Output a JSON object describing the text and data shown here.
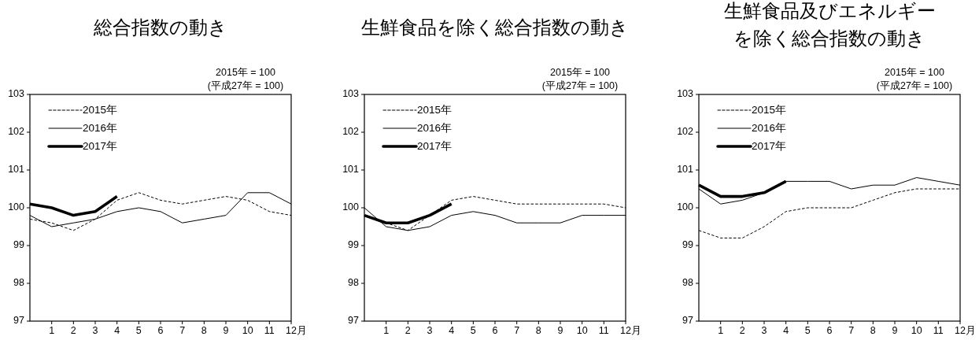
{
  "chart_data": [
    {
      "type": "line",
      "title": "総合指数の動き",
      "annotations": [
        "2015年 = 100",
        "(平成27年 = 100)"
      ],
      "x": [
        0,
        1,
        2,
        3,
        4,
        5,
        6,
        7,
        8,
        9,
        10,
        11,
        12
      ],
      "xlim": [
        0,
        12
      ],
      "xticks": [
        1,
        2,
        3,
        4,
        5,
        6,
        7,
        8,
        9,
        10,
        11,
        12
      ],
      "xlabel": "月",
      "ylim": [
        97,
        103
      ],
      "yticks": [
        97,
        98,
        99,
        100,
        101,
        102,
        103
      ],
      "legend": "top left",
      "series": [
        {
          "name": "2015年",
          "color": "#000000",
          "line_style": "dashed",
          "values": [
            99.7,
            99.6,
            99.4,
            99.7,
            100.2,
            100.4,
            100.2,
            100.1,
            100.2,
            100.3,
            100.2,
            99.9,
            99.8
          ]
        },
        {
          "name": "2016年",
          "color": "#000000",
          "line_style": "solid",
          "values": [
            99.8,
            99.5,
            99.6,
            99.7,
            99.9,
            100.0,
            99.9,
            99.6,
            99.7,
            99.8,
            100.4,
            100.4,
            100.1
          ]
        },
        {
          "name": "2017年",
          "color": "#000000",
          "line_style": "solid",
          "values": [
            100.1,
            100.0,
            99.8,
            99.9,
            100.3,
            null,
            null,
            null,
            null,
            null,
            null,
            null,
            null
          ]
        }
      ]
    },
    {
      "type": "line",
      "title": "生鮮食品を除く総合指数の動き",
      "annotations": [
        "2015年 = 100",
        "(平成27年 = 100)"
      ],
      "x": [
        0,
        1,
        2,
        3,
        4,
        5,
        6,
        7,
        8,
        9,
        10,
        11,
        12
      ],
      "xlim": [
        0,
        12
      ],
      "xticks": [
        1,
        2,
        3,
        4,
        5,
        6,
        7,
        8,
        9,
        10,
        11,
        12
      ],
      "xlabel": "月",
      "ylim": [
        97,
        103
      ],
      "yticks": [
        97,
        98,
        99,
        100,
        101,
        102,
        103
      ],
      "legend": "top left",
      "series": [
        {
          "name": "2015年",
          "color": "#000000",
          "line_style": "dashed",
          "values": [
            99.8,
            99.6,
            99.4,
            99.8,
            100.2,
            100.3,
            100.2,
            100.1,
            100.1,
            100.1,
            100.1,
            100.1,
            100.0
          ]
        },
        {
          "name": "2016年",
          "color": "#000000",
          "line_style": "solid",
          "values": [
            100.0,
            99.5,
            99.4,
            99.5,
            99.8,
            99.9,
            99.8,
            99.6,
            99.6,
            99.6,
            99.8,
            99.8,
            99.8
          ]
        },
        {
          "name": "2017年",
          "color": "#000000",
          "line_style": "solid",
          "values": [
            99.8,
            99.6,
            99.6,
            99.8,
            100.1,
            null,
            null,
            null,
            null,
            null,
            null,
            null,
            null
          ]
        }
      ]
    },
    {
      "type": "line",
      "title": "生鮮食品及びエネルギーを除く総合指数の動き",
      "annotations": [
        "2015年 = 100",
        "(平成27年 = 100)"
      ],
      "x": [
        0,
        1,
        2,
        3,
        4,
        5,
        6,
        7,
        8,
        9,
        10,
        11,
        12
      ],
      "xlim": [
        0,
        12
      ],
      "xticks": [
        1,
        2,
        3,
        4,
        5,
        6,
        7,
        8,
        9,
        10,
        11,
        12
      ],
      "xlabel": "月",
      "ylim": [
        97,
        103
      ],
      "yticks": [
        97,
        98,
        99,
        100,
        101,
        102,
        103
      ],
      "legend": "top left",
      "series": [
        {
          "name": "2015年",
          "color": "#000000",
          "line_style": "dashed",
          "values": [
            99.4,
            99.2,
            99.2,
            99.5,
            99.9,
            100.0,
            100.0,
            100.0,
            100.2,
            100.4,
            100.5,
            100.5,
            100.5
          ]
        },
        {
          "name": "2016年",
          "color": "#000000",
          "line_style": "solid",
          "values": [
            100.5,
            100.1,
            100.2,
            100.4,
            100.7,
            100.7,
            100.7,
            100.5,
            100.6,
            100.6,
            100.8,
            100.7,
            100.6
          ]
        },
        {
          "name": "2017年",
          "color": "#000000",
          "line_style": "solid",
          "values": [
            100.6,
            100.3,
            100.3,
            100.4,
            100.7,
            null,
            null,
            null,
            null,
            null,
            null,
            null,
            null
          ]
        }
      ]
    }
  ]
}
